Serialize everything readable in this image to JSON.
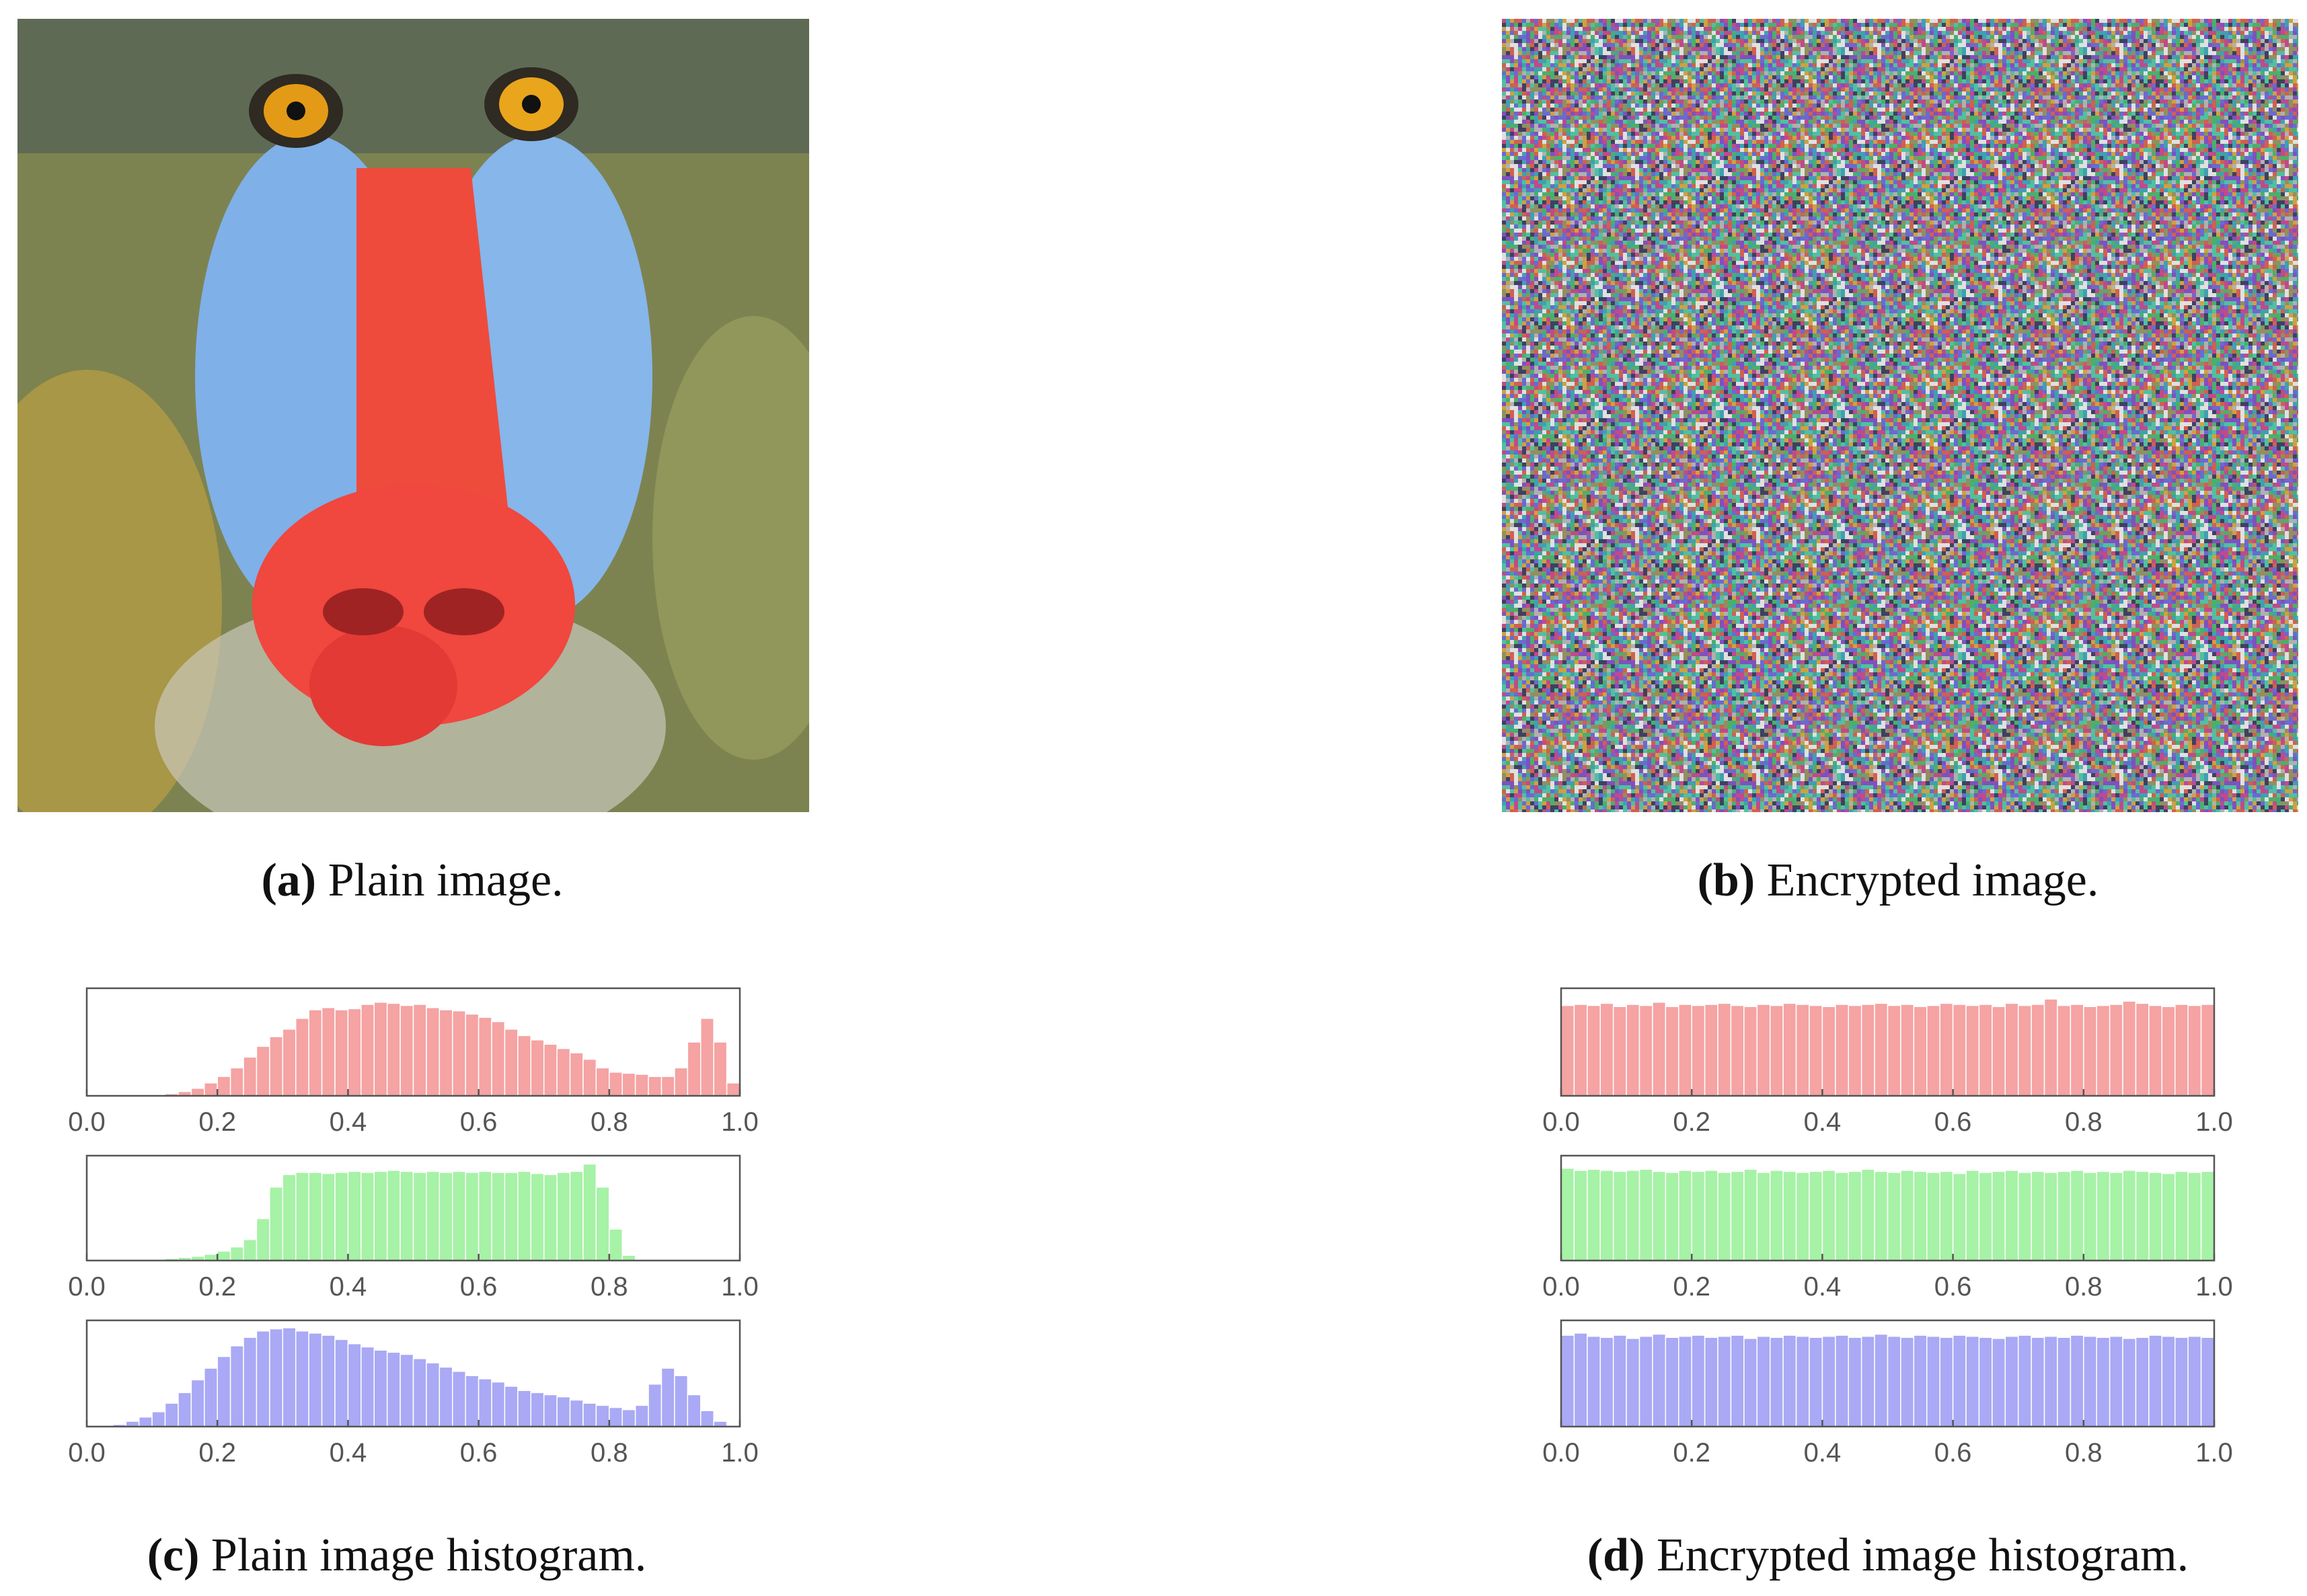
{
  "figure": {
    "captions": [
      {
        "label": "(a)",
        "text": "Plain image."
      },
      {
        "label": "(b)",
        "text": "Encrypted image."
      },
      {
        "label": "(c)",
        "text": "Plain image histogram."
      },
      {
        "label": "(d)",
        "text": "Encrypted image histogram."
      }
    ]
  },
  "chart_data": [
    {
      "type": "histogram",
      "color": "#f5a3a3",
      "bins": [
        0,
        0.02,
        0.04,
        0.06,
        0.08,
        0.1,
        0.12,
        0.14,
        0.16,
        0.18,
        0.2,
        0.22,
        0.24,
        0.26,
        0.28,
        0.3,
        0.32,
        0.34,
        0.36,
        0.38,
        0.4,
        0.42,
        0.44,
        0.46,
        0.48,
        0.5,
        0.52,
        0.54,
        0.56,
        0.58,
        0.6,
        0.62,
        0.64,
        0.66,
        0.68,
        0.7,
        0.72,
        0.74,
        0.76,
        0.78,
        0.8,
        0.82,
        0.84,
        0.86,
        0.88,
        0.9,
        0.92,
        0.94,
        0.96,
        0.98,
        1
      ],
      "values": [
        0,
        0,
        0,
        0,
        0,
        1,
        2,
        4,
        7,
        12,
        18,
        26,
        36,
        46,
        55,
        62,
        72,
        80,
        82,
        80,
        81,
        85,
        87,
        86,
        84,
        85,
        82,
        80,
        79,
        76,
        73,
        69,
        62,
        56,
        52,
        48,
        44,
        40,
        34,
        26,
        22,
        21,
        20,
        18,
        18,
        26,
        50,
        72,
        50,
        12
      ],
      "xlim": [
        0,
        1
      ],
      "ylim": [
        0,
        100
      ],
      "xticks": [
        {
          "value": 0,
          "label": "0.0"
        },
        0.2,
        0.4,
        0.6,
        0.8,
        {
          "value": 1,
          "label": "1.0"
        }
      ]
    },
    {
      "type": "histogram",
      "color": "#a6f2a6",
      "bins": [
        0,
        0.02,
        0.04,
        0.06,
        0.08,
        0.1,
        0.12,
        0.14,
        0.16,
        0.18,
        0.2,
        0.22,
        0.24,
        0.26,
        0.28,
        0.3,
        0.32,
        0.34,
        0.36,
        0.38,
        0.4,
        0.42,
        0.44,
        0.46,
        0.48,
        0.5,
        0.52,
        0.54,
        0.56,
        0.58,
        0.6,
        0.62,
        0.64,
        0.66,
        0.68,
        0.7,
        0.72,
        0.74,
        0.76,
        0.78,
        0.8,
        0.82,
        0.84,
        0.86,
        0.88,
        0.9,
        0.92,
        0.94,
        0.96,
        0.98,
        1
      ],
      "values": [
        0,
        0,
        0,
        0,
        0,
        1,
        2,
        3,
        4,
        6,
        9,
        13,
        20,
        40,
        70,
        82,
        84,
        84,
        83,
        84,
        85,
        84,
        85,
        86,
        85,
        84,
        85,
        84,
        85,
        84,
        85,
        84,
        84,
        85,
        83,
        82,
        84,
        85,
        92,
        70,
        30,
        5,
        0,
        0,
        0,
        0,
        0,
        0,
        0,
        0
      ],
      "xlim": [
        0,
        1
      ],
      "ylim": [
        0,
        100
      ],
      "xticks": [
        {
          "value": 0,
          "label": "0.0"
        },
        0.2,
        0.4,
        0.6,
        0.8,
        {
          "value": 1,
          "label": "1.0"
        }
      ]
    },
    {
      "type": "histogram",
      "color": "#a9a9f5",
      "bins": [
        0,
        0.02,
        0.04,
        0.06,
        0.08,
        0.1,
        0.12,
        0.14,
        0.16,
        0.18,
        0.2,
        0.22,
        0.24,
        0.26,
        0.28,
        0.3,
        0.32,
        0.34,
        0.36,
        0.38,
        0.4,
        0.42,
        0.44,
        0.46,
        0.48,
        0.5,
        0.52,
        0.54,
        0.56,
        0.58,
        0.6,
        0.62,
        0.64,
        0.66,
        0.68,
        0.7,
        0.72,
        0.74,
        0.76,
        0.78,
        0.8,
        0.82,
        0.84,
        0.86,
        0.88,
        0.9,
        0.92,
        0.94,
        0.96,
        0.98,
        1
      ],
      "values": [
        0,
        0,
        2,
        5,
        9,
        14,
        22,
        32,
        44,
        55,
        66,
        76,
        84,
        90,
        92,
        93,
        90,
        88,
        86,
        82,
        78,
        75,
        72,
        70,
        68,
        64,
        60,
        56,
        52,
        48,
        45,
        42,
        38,
        34,
        32,
        30,
        28,
        25,
        22,
        20,
        18,
        16,
        20,
        40,
        55,
        48,
        30,
        15,
        5,
        0
      ],
      "xlim": [
        0,
        1
      ],
      "ylim": [
        0,
        100
      ],
      "xticks": [
        {
          "value": 0,
          "label": "0.0"
        },
        0.2,
        0.4,
        0.6,
        0.8,
        {
          "value": 1,
          "label": "1.0"
        }
      ]
    },
    {
      "type": "histogram",
      "color": "#f5a3a3",
      "bins": [
        0,
        0.02,
        0.04,
        0.06,
        0.08,
        0.1,
        0.12,
        0.14,
        0.16,
        0.18,
        0.2,
        0.22,
        0.24,
        0.26,
        0.28,
        0.3,
        0.32,
        0.34,
        0.36,
        0.38,
        0.4,
        0.42,
        0.44,
        0.46,
        0.48,
        0.5,
        0.52,
        0.54,
        0.56,
        0.58,
        0.6,
        0.62,
        0.64,
        0.66,
        0.68,
        0.7,
        0.72,
        0.74,
        0.76,
        0.78,
        0.8,
        0.82,
        0.84,
        0.86,
        0.88,
        0.9,
        0.92,
        0.94,
        0.96,
        0.98,
        1
      ],
      "values": [
        84,
        85,
        84,
        86,
        83,
        85,
        84,
        87,
        83,
        85,
        84,
        85,
        86,
        84,
        83,
        85,
        84,
        86,
        85,
        84,
        83,
        85,
        84,
        85,
        86,
        84,
        85,
        83,
        84,
        86,
        85,
        84,
        85,
        83,
        86,
        84,
        85,
        90,
        84,
        85,
        83,
        84,
        85,
        88,
        86,
        84,
        83,
        85,
        84,
        85
      ],
      "xlim": [
        0,
        1
      ],
      "ylim": [
        0,
        100
      ],
      "xticks": [
        {
          "value": 0,
          "label": "0.0"
        },
        0.2,
        0.4,
        0.6,
        0.8,
        {
          "value": 1,
          "label": "1.0"
        }
      ]
    },
    {
      "type": "histogram",
      "color": "#a6f2a6",
      "bins": [
        0,
        0.02,
        0.04,
        0.06,
        0.08,
        0.1,
        0.12,
        0.14,
        0.16,
        0.18,
        0.2,
        0.22,
        0.24,
        0.26,
        0.28,
        0.3,
        0.32,
        0.34,
        0.36,
        0.38,
        0.4,
        0.42,
        0.44,
        0.46,
        0.48,
        0.5,
        0.52,
        0.54,
        0.56,
        0.58,
        0.6,
        0.62,
        0.64,
        0.66,
        0.68,
        0.7,
        0.72,
        0.74,
        0.76,
        0.78,
        0.8,
        0.82,
        0.84,
        0.86,
        0.88,
        0.9,
        0.92,
        0.94,
        0.96,
        0.98,
        1
      ],
      "values": [
        88,
        86,
        87,
        86,
        85,
        86,
        87,
        85,
        84,
        86,
        85,
        86,
        84,
        85,
        87,
        84,
        86,
        85,
        84,
        85,
        86,
        84,
        85,
        87,
        85,
        84,
        86,
        85,
        84,
        85,
        83,
        86,
        84,
        85,
        86,
        84,
        85,
        84,
        85,
        86,
        84,
        85,
        84,
        86,
        85,
        84,
        83,
        85,
        84,
        85
      ],
      "xlim": [
        0,
        1
      ],
      "ylim": [
        0,
        100
      ],
      "xticks": [
        {
          "value": 0,
          "label": "0.0"
        },
        0.2,
        0.4,
        0.6,
        0.8,
        {
          "value": 1,
          "label": "1.0"
        }
      ]
    },
    {
      "type": "histogram",
      "color": "#a9a9f5",
      "bins": [
        0,
        0.02,
        0.04,
        0.06,
        0.08,
        0.1,
        0.12,
        0.14,
        0.16,
        0.18,
        0.2,
        0.22,
        0.24,
        0.26,
        0.28,
        0.3,
        0.32,
        0.34,
        0.36,
        0.38,
        0.4,
        0.42,
        0.44,
        0.46,
        0.48,
        0.5,
        0.52,
        0.54,
        0.56,
        0.58,
        0.6,
        0.62,
        0.64,
        0.66,
        0.68,
        0.7,
        0.72,
        0.74,
        0.76,
        0.78,
        0.8,
        0.82,
        0.84,
        0.86,
        0.88,
        0.9,
        0.92,
        0.94,
        0.96,
        0.98,
        1
      ],
      "values": [
        86,
        88,
        85,
        84,
        86,
        83,
        85,
        87,
        84,
        85,
        86,
        84,
        85,
        86,
        83,
        85,
        84,
        86,
        85,
        84,
        85,
        86,
        84,
        85,
        87,
        85,
        84,
        86,
        85,
        84,
        86,
        85,
        84,
        83,
        85,
        86,
        84,
        85,
        84,
        86,
        85,
        84,
        85,
        83,
        84,
        86,
        85,
        84,
        85,
        84
      ],
      "xlim": [
        0,
        1
      ],
      "ylim": [
        0,
        100
      ],
      "xticks": [
        {
          "value": 0,
          "label": "0.0"
        },
        0.2,
        0.4,
        0.6,
        0.8,
        {
          "value": 1,
          "label": "1.0"
        }
      ]
    }
  ]
}
